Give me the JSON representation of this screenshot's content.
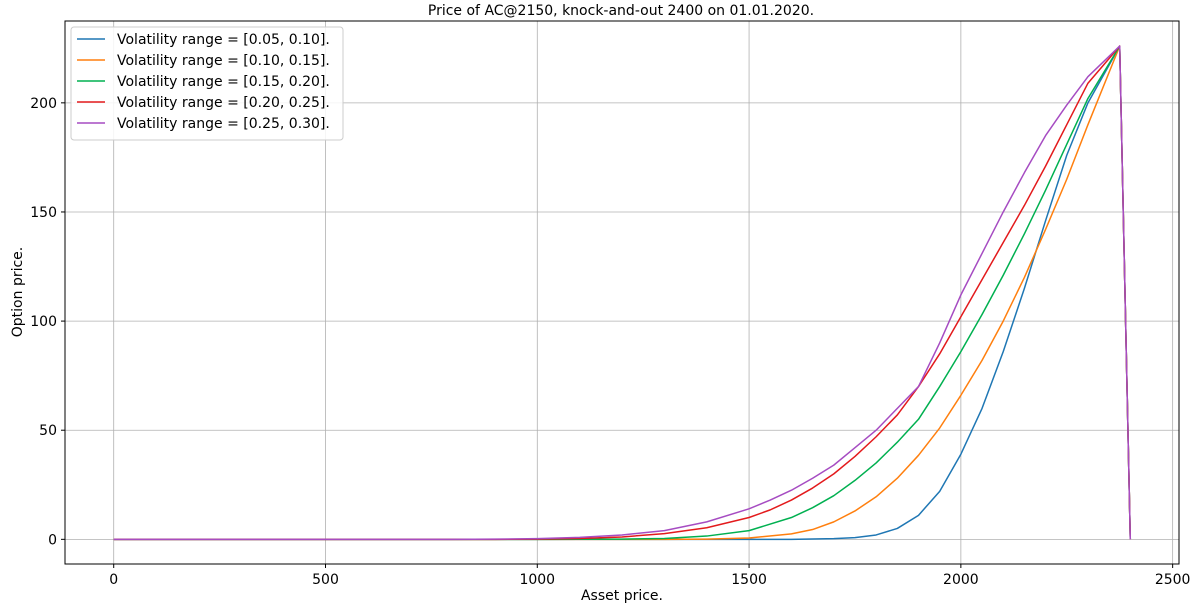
{
  "chart_data": {
    "type": "line",
    "title": "Price of AC@2150, knock-and-out 2400 on 01.01.2020.",
    "xlabel": "Asset price.",
    "ylabel": "Option price.",
    "xlim": [
      -115,
      2515
    ],
    "ylim": [
      -11.3,
      237.5
    ],
    "xticks": [
      0,
      500,
      1000,
      1500,
      2000,
      2500
    ],
    "yticks": [
      0,
      50,
      100,
      150,
      200
    ],
    "grid": true,
    "legend_position": "top-left",
    "series": [
      {
        "name": "Volatility range = [0.05, 0.10].",
        "color": "#1f77b4",
        "x": [
          0,
          1000,
          1500,
          1600,
          1700,
          1750,
          1800,
          1850,
          1900,
          1950,
          2000,
          2050,
          2100,
          2150,
          2200,
          2250,
          2300,
          2375,
          2400
        ],
        "y": [
          0,
          0,
          0,
          0,
          0.3,
          0.8,
          2,
          5,
          11,
          22,
          39,
          60,
          86,
          115,
          146,
          176,
          200,
          226,
          0
        ]
      },
      {
        "name": "Volatility range = [0.10, 0.15].",
        "color": "#ff7f0e",
        "x": [
          0,
          1000,
          1300,
          1400,
          1500,
          1600,
          1650,
          1700,
          1750,
          1800,
          1850,
          1900,
          1950,
          2000,
          2050,
          2100,
          2150,
          2200,
          2250,
          2300,
          2375,
          2400
        ],
        "y": [
          0,
          0,
          0,
          0.1,
          0.6,
          2.5,
          4.5,
          8,
          13,
          19.5,
          28,
          38.5,
          51,
          66,
          82,
          100,
          120,
          142,
          165,
          190,
          226,
          0
        ]
      },
      {
        "name": "Volatility range = [0.15, 0.20].",
        "color": "#00b050",
        "x": [
          0,
          1000,
          1200,
          1300,
          1400,
          1500,
          1600,
          1650,
          1700,
          1750,
          1800,
          1850,
          1900,
          1950,
          2000,
          2050,
          2100,
          2150,
          2200,
          2250,
          2300,
          2375,
          2400
        ],
        "y": [
          0,
          0,
          0.1,
          0.4,
          1.5,
          4,
          10,
          14.5,
          20,
          27,
          35,
          44.5,
          55,
          70,
          86,
          103,
          121,
          140,
          160,
          181,
          202,
          226,
          0
        ]
      },
      {
        "name": "Volatility range = [0.20, 0.25].",
        "color": "#e31a1c",
        "x": [
          0,
          900,
          1000,
          1100,
          1200,
          1300,
          1400,
          1500,
          1550,
          1600,
          1650,
          1700,
          1750,
          1800,
          1850,
          1900,
          1950,
          2000,
          2050,
          2100,
          2150,
          2200,
          2250,
          2300,
          2375,
          2400
        ],
        "y": [
          0,
          0,
          0.1,
          0.4,
          1.1,
          2.6,
          5.3,
          10,
          13.5,
          18,
          23.5,
          30,
          38,
          47,
          57,
          70,
          85,
          102,
          119,
          136,
          153,
          171,
          190,
          209,
          226,
          0
        ]
      },
      {
        "name": "Volatility range = [0.25, 0.30].",
        "color": "#a64cc2",
        "x": [
          0,
          800,
          900,
          1000,
          1100,
          1200,
          1300,
          1400,
          1500,
          1550,
          1600,
          1650,
          1700,
          1750,
          1800,
          1850,
          1900,
          1950,
          2000,
          2050,
          2100,
          2150,
          2200,
          2250,
          2300,
          2375,
          2400
        ],
        "y": [
          0,
          0,
          0.1,
          0.3,
          0.9,
          2,
          4,
          8,
          14,
          18,
          22.5,
          28,
          34,
          42,
          50,
          60,
          70,
          90,
          112,
          131,
          150,
          168,
          185,
          199,
          212,
          226,
          0
        ]
      }
    ]
  }
}
